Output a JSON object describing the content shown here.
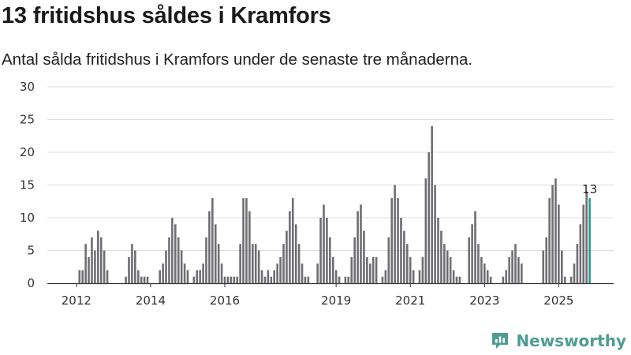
{
  "header": {
    "title": "13 fritidshus såldes i Kramfors",
    "subtitle": "Antal sålda fritidshus i Kramfors under de senaste tre månaderna."
  },
  "brand": {
    "name": "Newsworthy",
    "icon": "newsworthy-logo-icon",
    "color": "#4e9e92"
  },
  "colors": {
    "bar": "#6f6e73",
    "highlight": "#1f9a90",
    "grid": "#dddddd",
    "axis": "#333333"
  },
  "chart_data": {
    "type": "bar",
    "title": "",
    "xlabel": "",
    "ylabel": "",
    "ylim": [
      0,
      30
    ],
    "yticks": [
      0,
      5,
      10,
      15,
      20,
      25,
      30
    ],
    "xticks": [
      {
        "label": "2012",
        "index": 8
      },
      {
        "label": "2014",
        "index": 32
      },
      {
        "label": "2016",
        "index": 56
      },
      {
        "label": "2019",
        "index": 92
      },
      {
        "label": "2021",
        "index": 116
      },
      {
        "label": "2023",
        "index": 140
      },
      {
        "label": "2025",
        "index": 164
      }
    ],
    "grid": true,
    "start": "2011-01",
    "frequency": "monthly",
    "values": [
      0,
      0,
      0,
      0,
      0,
      0,
      0,
      0,
      0,
      2,
      2,
      6,
      4,
      7,
      5,
      8,
      7,
      5,
      2,
      0,
      0,
      0,
      0,
      0,
      1,
      4,
      6,
      5,
      2,
      1,
      1,
      1,
      0,
      0,
      0,
      2,
      3,
      5,
      7,
      10,
      9,
      7,
      5,
      3,
      2,
      0,
      1,
      2,
      2,
      3,
      7,
      11,
      13,
      9,
      6,
      3,
      1,
      1,
      1,
      1,
      1,
      6,
      13,
      13,
      11,
      6,
      6,
      5,
      2,
      1,
      2,
      1,
      2,
      3,
      4,
      6,
      8,
      11,
      13,
      9,
      6,
      3,
      1,
      1,
      0,
      0,
      3,
      10,
      12,
      10,
      7,
      4,
      2,
      1,
      0,
      1,
      1,
      4,
      7,
      11,
      12,
      8,
      4,
      3,
      4,
      4,
      0,
      1,
      2,
      7,
      13,
      15,
      13,
      10,
      8,
      6,
      4,
      2,
      0,
      2,
      4,
      16,
      20,
      24,
      15,
      10,
      8,
      6,
      5,
      4,
      2,
      1,
      1,
      0,
      0,
      7,
      9,
      11,
      6,
      4,
      3,
      2,
      1,
      0,
      0,
      0,
      1,
      2,
      4,
      5,
      6,
      4,
      3,
      0,
      0,
      0,
      0,
      0,
      0,
      5,
      7,
      13,
      15,
      16,
      12,
      5,
      1,
      0,
      1,
      3,
      6,
      9,
      12,
      14,
      13
    ],
    "highlight_index": 174,
    "highlight_label": "13"
  }
}
